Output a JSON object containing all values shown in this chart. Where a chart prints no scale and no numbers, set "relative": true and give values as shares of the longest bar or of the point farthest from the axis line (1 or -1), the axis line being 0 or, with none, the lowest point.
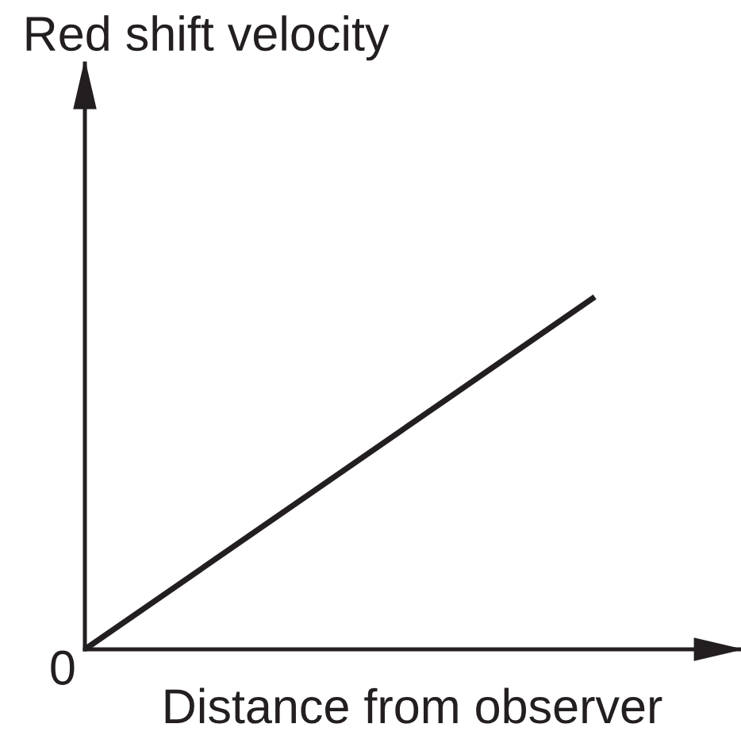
{
  "chart_data": {
    "type": "line",
    "xlabel": "Distance from observer",
    "ylabel": "Red shift velocity",
    "annotations": [
      "0"
    ],
    "categories": [
      null,
      null
    ],
    "relative": true,
    "series": [
      {
        "color": "#231f20",
        "values": [
          0,
          1
        ]
      }
    ]
  }
}
